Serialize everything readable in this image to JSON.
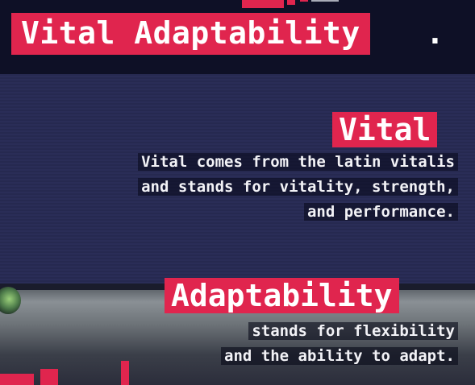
{
  "title": "Vital Adaptability",
  "title_suffix": ".",
  "sections": [
    {
      "heading": "Vital",
      "lines": [
        "Vital comes from the latin vitalis",
        "and stands for vitality, strength,",
        "and performance."
      ]
    },
    {
      "heading": "Adaptability",
      "lines": [
        "stands for flexibility",
        "and the ability to adapt."
      ]
    }
  ],
  "colors": {
    "accent": "#e0254e",
    "background": "#23264a",
    "text": "#ffffff"
  }
}
